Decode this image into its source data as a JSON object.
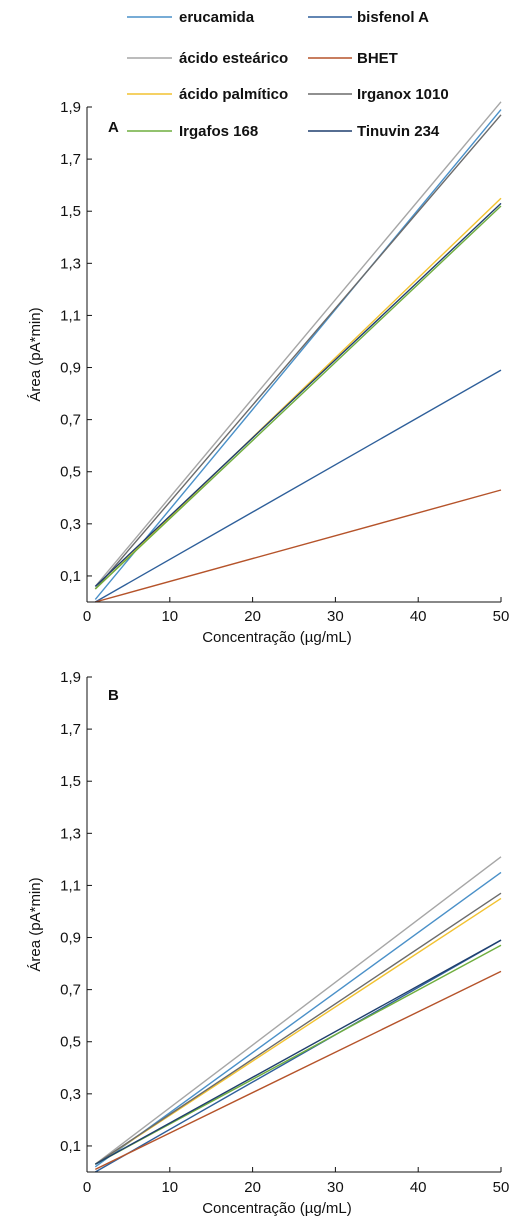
{
  "legend": [
    {
      "name": "erucamida",
      "color": "#4a90c8"
    },
    {
      "name": "bisfenol A",
      "color": "#2e5f9a"
    },
    {
      "name": "ácido esteárico",
      "color": "#a6a6a6"
    },
    {
      "name": "BHET",
      "color": "#b5532a"
    },
    {
      "name": "ácido palmítico",
      "color": "#f2c230"
    },
    {
      "name": "Irganox 1010",
      "color": "#6b6b6b"
    },
    {
      "name": "Irgafos 168",
      "color": "#6fae3e"
    },
    {
      "name": "Tinuvin 234",
      "color": "#1f3f6e"
    }
  ],
  "chart_data": [
    {
      "type": "line",
      "panel_label": "A",
      "xlabel": "Concentração (µg/mL)",
      "ylabel": "Área (pA*min)",
      "xlim": [
        0,
        50
      ],
      "ylim": [
        0,
        1.9
      ],
      "x_ticks": [
        "0",
        "10",
        "20",
        "30",
        "40",
        "50"
      ],
      "y_ticks": [
        "0,1",
        "0,3",
        "0,5",
        "0,7",
        "0,9",
        "1,1",
        "1,3",
        "1,5",
        "1,7",
        "1,9"
      ],
      "grid": false,
      "series": [
        {
          "name": "erucamida",
          "x": [
            1,
            50
          ],
          "y": [
            0.01,
            1.89
          ]
        },
        {
          "name": "bisfenol A",
          "x": [
            1,
            50
          ],
          "y": [
            0.0,
            0.89
          ]
        },
        {
          "name": "ácido esteárico",
          "x": [
            1,
            50
          ],
          "y": [
            0.06,
            1.92
          ]
        },
        {
          "name": "BHET",
          "x": [
            1,
            50
          ],
          "y": [
            0.0,
            0.43
          ]
        },
        {
          "name": "ácido palmítico",
          "x": [
            1,
            50
          ],
          "y": [
            0.05,
            1.55
          ]
        },
        {
          "name": "Irganox 1010",
          "x": [
            1,
            50
          ],
          "y": [
            0.05,
            1.87
          ]
        },
        {
          "name": "Irgafos 168",
          "x": [
            1,
            50
          ],
          "y": [
            0.05,
            1.52
          ]
        },
        {
          "name": "Tinuvin 234",
          "x": [
            1,
            50
          ],
          "y": [
            0.06,
            1.53
          ]
        }
      ]
    },
    {
      "type": "line",
      "panel_label": "B",
      "xlabel": "Concentração (µg/mL)",
      "ylabel": "Área (pA*min)",
      "xlim": [
        0,
        50
      ],
      "ylim": [
        0,
        1.9
      ],
      "x_ticks": [
        "0",
        "10",
        "20",
        "30",
        "40",
        "50"
      ],
      "y_ticks": [
        "0,1",
        "0,3",
        "0,5",
        "0,7",
        "0,9",
        "1,1",
        "1,3",
        "1,5",
        "1,7",
        "1,9"
      ],
      "grid": false,
      "series": [
        {
          "name": "erucamida",
          "x": [
            1,
            50
          ],
          "y": [
            0.02,
            1.15
          ]
        },
        {
          "name": "bisfenol A",
          "x": [
            1,
            50
          ],
          "y": [
            0.0,
            0.89
          ]
        },
        {
          "name": "ácido esteárico",
          "x": [
            1,
            50
          ],
          "y": [
            0.03,
            1.21
          ]
        },
        {
          "name": "BHET",
          "x": [
            1,
            50
          ],
          "y": [
            0.01,
            0.77
          ]
        },
        {
          "name": "ácido palmítico",
          "x": [
            1,
            50
          ],
          "y": [
            0.03,
            1.05
          ]
        },
        {
          "name": "Irganox 1010",
          "x": [
            1,
            50
          ],
          "y": [
            0.03,
            1.07
          ]
        },
        {
          "name": "Irgafos 168",
          "x": [
            1,
            50
          ],
          "y": [
            0.03,
            0.87
          ]
        },
        {
          "name": "Tinuvin 234",
          "x": [
            1,
            50
          ],
          "y": [
            0.03,
            0.89
          ]
        }
      ]
    }
  ]
}
